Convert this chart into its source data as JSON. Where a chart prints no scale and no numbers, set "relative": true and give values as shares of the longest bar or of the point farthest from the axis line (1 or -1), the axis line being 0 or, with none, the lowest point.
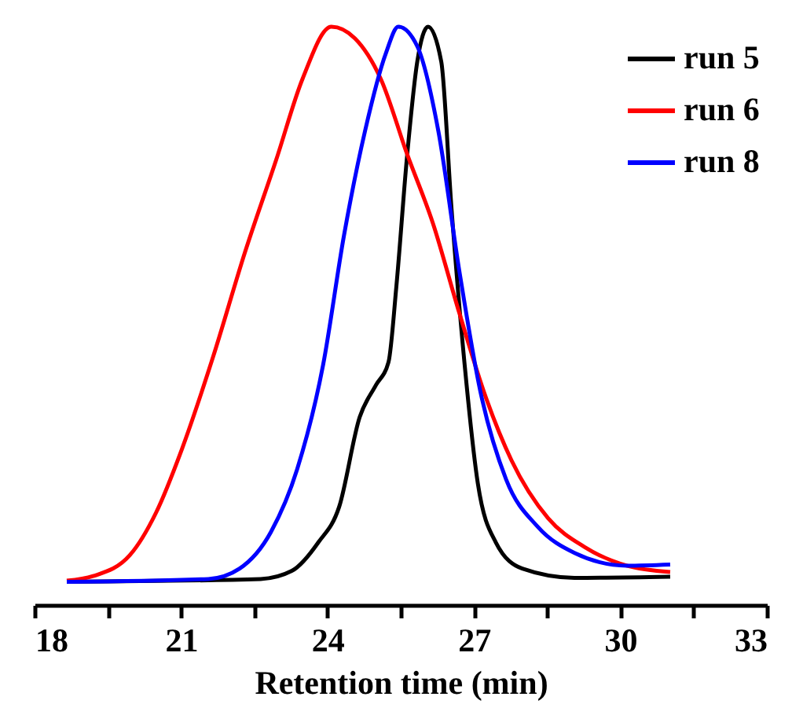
{
  "chart_data": {
    "type": "line",
    "relative": true,
    "xlabel": "Retention time (min)",
    "xlim": [
      18,
      33
    ],
    "xticks": [
      18,
      {
        "value": 19.5,
        "label": null
      },
      21,
      {
        "value": 22.5,
        "label": null
      },
      24,
      {
        "value": 25.5,
        "label": null
      },
      27,
      {
        "value": 28.5,
        "label": null
      },
      30,
      {
        "value": 31.5,
        "label": null
      },
      33
    ],
    "legend": "top right",
    "line_style": "solid",
    "series": [
      {
        "name": "run 5",
        "color": "#000000",
        "x": [
          18.66,
          22.63,
          23.27,
          23.81,
          24.24,
          24.66,
          24.99,
          25.25,
          25.41,
          25.63,
          25.84,
          26.06,
          26.33,
          26.54,
          26.81,
          27.08,
          27.45,
          27.99,
          29.06,
          31.02
        ],
        "values": [
          0.04,
          0.045,
          0.059,
          0.108,
          0.17,
          0.325,
          0.38,
          0.42,
          0.55,
          0.776,
          0.94,
          1.0,
          0.94,
          0.686,
          0.415,
          0.21,
          0.108,
          0.063,
          0.047,
          0.049
        ]
      },
      {
        "name": "run 6",
        "color": "#ff0000",
        "x": [
          18.66,
          19.2,
          19.95,
          20.49,
          21.02,
          21.66,
          22.31,
          22.95,
          23.49,
          24.08,
          24.56,
          25.09,
          25.63,
          26.16,
          26.7,
          27.24,
          27.77,
          28.52,
          29.27,
          30.13,
          31.02
        ],
        "values": [
          0.042,
          0.05,
          0.086,
          0.16,
          0.27,
          0.43,
          0.61,
          0.77,
          0.91,
          1.0,
          0.98,
          0.91,
          0.78,
          0.66,
          0.505,
          0.36,
          0.25,
          0.15,
          0.1,
          0.068,
          0.057
        ]
      },
      {
        "name": "run 8",
        "color": "#0000ff",
        "x": [
          18.66,
          21.56,
          22.2,
          22.84,
          23.38,
          23.91,
          24.34,
          24.77,
          25.2,
          25.45,
          25.84,
          26.27,
          26.7,
          27.13,
          27.66,
          28.31,
          29.06,
          30.13,
          31.02
        ],
        "values": [
          0.04,
          0.045,
          0.063,
          0.126,
          0.235,
          0.415,
          0.64,
          0.82,
          0.955,
          1.0,
          0.966,
          0.82,
          0.578,
          0.37,
          0.217,
          0.135,
          0.09,
          0.068,
          0.07
        ]
      }
    ]
  }
}
